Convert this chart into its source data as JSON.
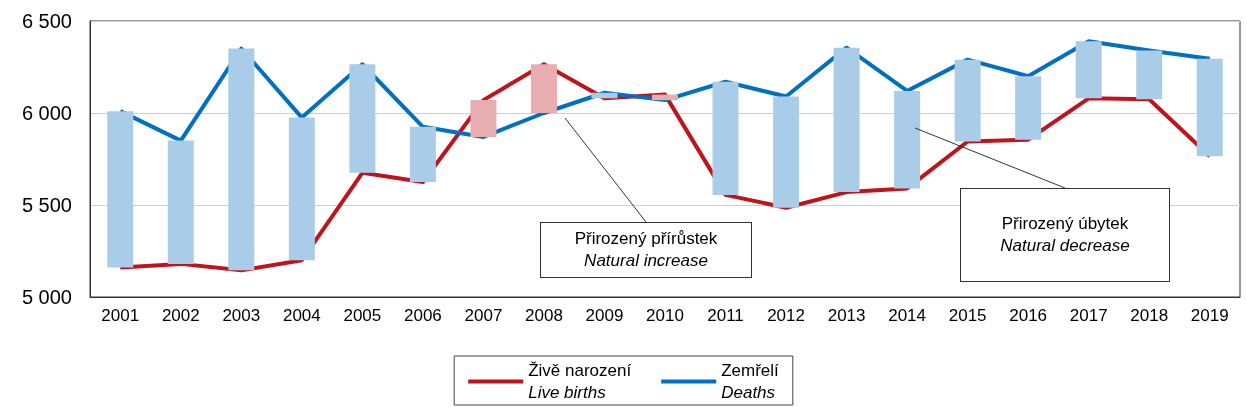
{
  "chart_data": {
    "type": "line",
    "categories": [
      "2001",
      "2002",
      "2003",
      "2004",
      "2005",
      "2006",
      "2007",
      "2008",
      "2009",
      "2010",
      "2011",
      "2012",
      "2013",
      "2014",
      "2015",
      "2016",
      "2017",
      "2018",
      "2019"
    ],
    "series": [
      {
        "type": "bar",
        "color": "#a9cde8",
        "base": [
          5160,
          5180,
          5145,
          5200,
          5675,
          5625,
          null,
          null,
          6080,
          null,
          5555,
          5485,
          5570,
          5590,
          5845,
          5855,
          6080,
          6075,
          5765
        ],
        "values": [
          850,
          670,
          1205,
          775,
          590,
          300,
          null,
          null,
          30,
          null,
          615,
          605,
          785,
          530,
          445,
          345,
          310,
          265,
          530
        ]
      },
      {
        "type": "bar",
        "color": "#e8adb0",
        "base": [
          null,
          null,
          null,
          null,
          null,
          null,
          5870,
          6000,
          null,
          6070,
          null,
          null,
          null,
          null,
          null,
          null,
          null,
          null,
          null
        ],
        "values": [
          null,
          null,
          null,
          null,
          null,
          null,
          200,
          265,
          null,
          30,
          null,
          null,
          null,
          null,
          null,
          null,
          null,
          null,
          null
        ]
      },
      {
        "name": "Živě narození\nLive births",
        "color": "#c0141c",
        "values": [
          5160,
          5180,
          5145,
          5200,
          5675,
          5625,
          6070,
          6265,
          6080,
          6100,
          5555,
          5485,
          5570,
          5590,
          5845,
          5855,
          6080,
          6075,
          5765
        ]
      },
      {
        "name": "Zemřelí\nDeaths",
        "color": "#0070c0",
        "values": [
          6010,
          5850,
          6350,
          5975,
          6265,
          5925,
          5870,
          6000,
          6110,
          6070,
          6170,
          6090,
          6355,
          6120,
          6290,
          6200,
          6390,
          6340,
          6295
        ]
      }
    ],
    "ylim": [
      5000,
      6500
    ],
    "yticks": [
      {
        "value": 5000,
        "label": "5 000"
      },
      {
        "value": 5500,
        "label": "5 500"
      },
      {
        "value": 6000,
        "label": "6 000"
      },
      {
        "value": 6500,
        "label": "6 500"
      }
    ],
    "grid": "y",
    "legend": "bottom",
    "marker": "none",
    "line_style": "solid",
    "annotations": [
      "Přirozený přírůstek\nNatural increase",
      "Přirozený úbytek\nNatural decrease"
    ]
  }
}
